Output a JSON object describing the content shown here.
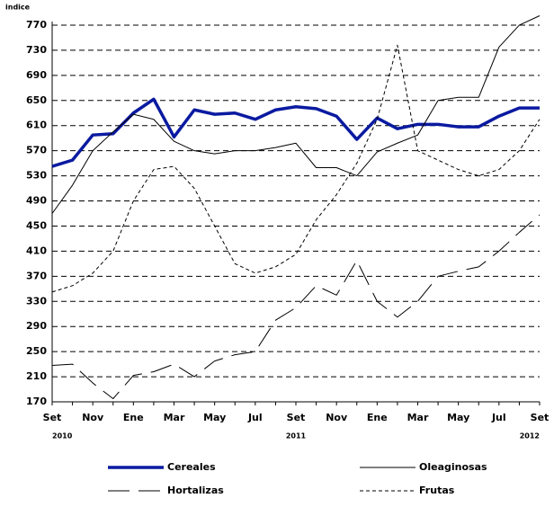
{
  "chart_data": {
    "type": "line",
    "y_label": "indice",
    "categories": [
      "Set",
      null,
      "Nov",
      null,
      "Ene",
      null,
      "Mar",
      null,
      "May",
      null,
      "Jul",
      null,
      "Set",
      null,
      "Nov",
      null,
      "Ene",
      null,
      "Mar",
      null,
      "May",
      null,
      "Jul",
      null,
      "Set"
    ],
    "years": [
      "2010",
      "2011",
      "2012"
    ],
    "ylim": [
      170,
      790
    ],
    "yticks": [
      170,
      210,
      250,
      290,
      330,
      370,
      410,
      450,
      490,
      530,
      570,
      610,
      650,
      690,
      730,
      770
    ],
    "grid": true,
    "series": [
      {
        "name": "Cereales",
        "color": "#0a1aa0",
        "style": "thick",
        "values": [
          545,
          555,
          595,
          597,
          630,
          652,
          592,
          635,
          628,
          630,
          620,
          635,
          640,
          637,
          625,
          588,
          622,
          605,
          612,
          612,
          608,
          608,
          625,
          638,
          638
        ]
      },
      {
        "name": "Oleaginosas",
        "color": "#000000",
        "style": "solid",
        "values": [
          470,
          515,
          570,
          600,
          628,
          620,
          585,
          570,
          565,
          570,
          570,
          575,
          582,
          543,
          543,
          530,
          568,
          582,
          595,
          650,
          655,
          655,
          735,
          770,
          785
        ]
      },
      {
        "name": "Hortalizas",
        "color": "#000000",
        "style": "longdash",
        "values": [
          228,
          230,
          200,
          175,
          212,
          218,
          230,
          210,
          235,
          245,
          250,
          300,
          320,
          355,
          340,
          395,
          330,
          305,
          330,
          370,
          378,
          385,
          410,
          440,
          468
        ]
      },
      {
        "name": "Frutas",
        "color": "#000000",
        "style": "shortdash",
        "values": [
          345,
          355,
          375,
          410,
          490,
          540,
          545,
          510,
          450,
          390,
          375,
          385,
          405,
          460,
          500,
          550,
          620,
          738,
          570,
          555,
          540,
          530,
          540,
          570,
          620
        ]
      }
    ]
  }
}
